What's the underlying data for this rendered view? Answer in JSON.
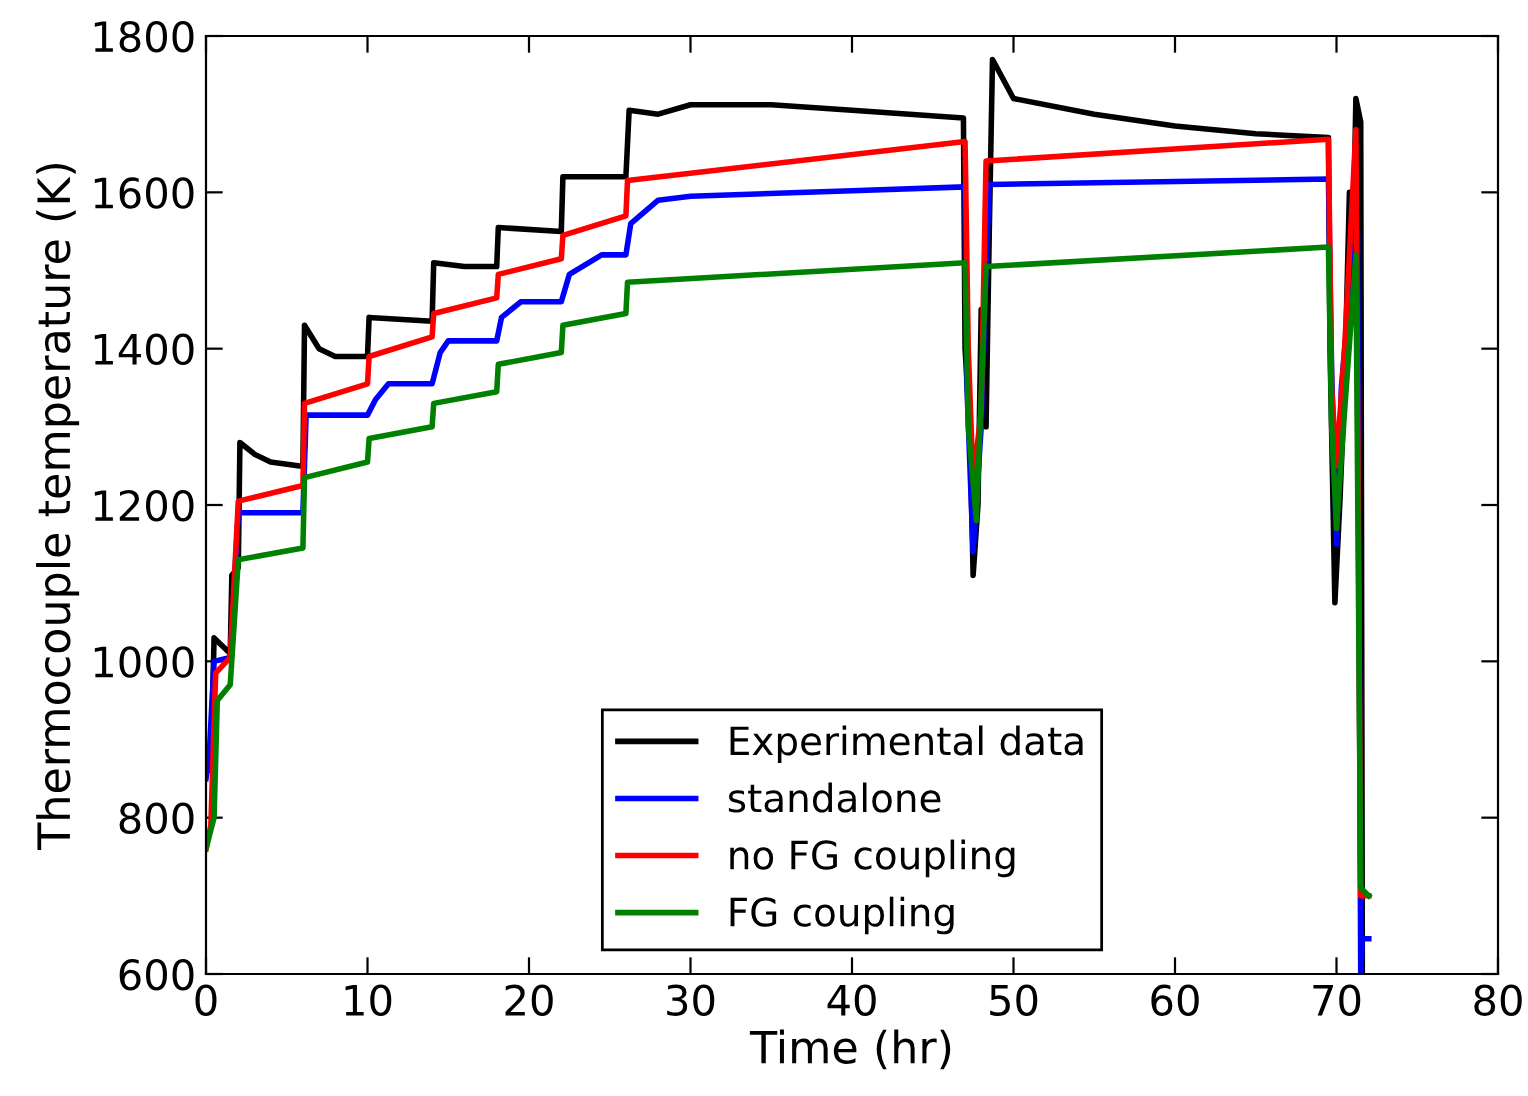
{
  "chart_data": {
    "type": "line",
    "xlabel": "Time (hr)",
    "ylabel": "Thermocouple temperature (K)",
    "xlim": [
      0,
      80
    ],
    "xticks": [
      0,
      10,
      20,
      30,
      40,
      50,
      60,
      70,
      80
    ],
    "ylim": [
      600,
      1800
    ],
    "yticks": [
      600,
      800,
      1000,
      1200,
      1400,
      1600,
      1800
    ],
    "grid": false,
    "legend": "bottom",
    "marker": "none",
    "line_style": "solid",
    "series": [
      {
        "name": "Experimental data",
        "color": "#000000",
        "x": [
          0,
          0.3,
          0.5,
          1,
          1.5,
          1.6,
          2,
          2.1,
          3,
          4,
          5.8,
          6,
          6.1,
          7,
          8,
          10,
          10.1,
          14,
          14.1,
          16,
          18,
          18.1,
          22,
          22.1,
          26,
          26.2,
          28,
          30,
          35,
          40,
          46.9,
          47,
          47.3,
          47.5,
          47.8,
          48,
          48.3,
          48.5,
          48.7,
          50,
          55,
          60,
          65,
          69.5,
          69.6,
          69.9,
          70.2,
          70.5,
          70.8,
          71,
          71.2,
          71.5,
          71.6
        ],
        "values": [
          880,
          860,
          1030,
          1020,
          1010,
          1110,
          1120,
          1280,
          1265,
          1255,
          1250,
          1250,
          1430,
          1400,
          1390,
          1390,
          1440,
          1435,
          1510,
          1505,
          1505,
          1555,
          1550,
          1620,
          1620,
          1705,
          1700,
          1712,
          1712,
          1705,
          1695,
          1400,
          1300,
          1110,
          1200,
          1450,
          1300,
          1550,
          1770,
          1720,
          1700,
          1685,
          1675,
          1670,
          1400,
          1075,
          1200,
          1350,
          1600,
          1500,
          1720,
          1690,
          600
        ]
      },
      {
        "name": "standalone",
        "color": "#0000ff",
        "x": [
          0,
          0.2,
          0.5,
          1.5,
          2,
          6,
          6.2,
          10,
          10.5,
          11.3,
          14,
          14.5,
          15,
          18,
          18.3,
          19.5,
          22,
          22.5,
          24.5,
          26,
          26.3,
          28,
          30,
          40,
          47,
          47.1,
          47.5,
          48,
          48.3,
          48.5,
          69.5,
          69.7,
          70,
          70.3,
          71,
          71.3,
          71.5,
          71.6,
          72
        ],
        "values": [
          850,
          880,
          1000,
          1005,
          1190,
          1190,
          1315,
          1315,
          1335,
          1355,
          1355,
          1395,
          1410,
          1410,
          1440,
          1460,
          1460,
          1495,
          1520,
          1520,
          1560,
          1590,
          1595,
          1602,
          1607,
          1360,
          1140,
          1300,
          1500,
          1610,
          1617,
          1370,
          1150,
          1350,
          1520,
          1550,
          600,
          645,
          645
        ]
      },
      {
        "name": "no FG coupling",
        "color": "#ff0000",
        "x": [
          0,
          0.3,
          0.6,
          1.5,
          2,
          6,
          6.1,
          10,
          10.1,
          14,
          14.1,
          18,
          18.1,
          22,
          22.1,
          26,
          26.1,
          47,
          47.2,
          47.5,
          48,
          48.3,
          69.5,
          69.7,
          70,
          70.5,
          71.2,
          71.5,
          72
        ],
        "values": [
          760,
          790,
          985,
          1005,
          1205,
          1225,
          1330,
          1355,
          1390,
          1415,
          1445,
          1465,
          1495,
          1515,
          1545,
          1570,
          1615,
          1665,
          1400,
          1230,
          1320,
          1640,
          1668,
          1350,
          1250,
          1400,
          1680,
          700,
          700
        ]
      },
      {
        "name": "FG coupling",
        "color": "#008000",
        "x": [
          0,
          0.5,
          0.7,
          1.5,
          2,
          6,
          6.1,
          10,
          10.1,
          14,
          14.1,
          18,
          18.1,
          22,
          22.1,
          26,
          26.1,
          47,
          47.2,
          47.7,
          48,
          48.3,
          69.5,
          69.7,
          70,
          70.5,
          71.2,
          71.5,
          72
        ],
        "values": [
          760,
          800,
          950,
          970,
          1130,
          1145,
          1235,
          1255,
          1285,
          1300,
          1330,
          1345,
          1380,
          1395,
          1430,
          1445,
          1485,
          1510,
          1300,
          1180,
          1340,
          1505,
          1530,
          1300,
          1170,
          1320,
          1520,
          710,
          700
        ]
      }
    ]
  }
}
